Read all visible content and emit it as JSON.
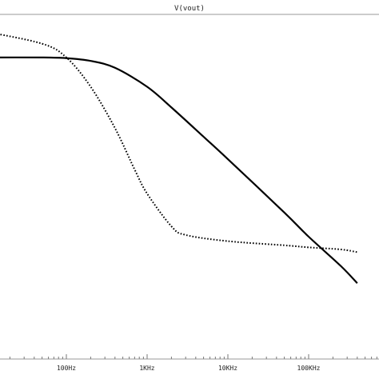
{
  "chart_data": {
    "type": "line",
    "title": "V(vout)",
    "x_scale": "log",
    "xlim_hz": [
      10,
      400000
    ],
    "x_ticks": [
      {
        "value": 100,
        "label": "100Hz"
      },
      {
        "value": 1000,
        "label": "1KHz"
      },
      {
        "value": 10000,
        "label": "10KHz"
      },
      {
        "value": 100000,
        "label": "100KHz"
      }
    ],
    "y_labels_visible": false,
    "series": [
      {
        "style": "solid",
        "color": "#000000",
        "points": [
          [
            10,
            0.875
          ],
          [
            50,
            0.875
          ],
          [
            100,
            0.873
          ],
          [
            200,
            0.865
          ],
          [
            400,
            0.845
          ],
          [
            1000,
            0.79
          ],
          [
            2000,
            0.73
          ],
          [
            5000,
            0.645
          ],
          [
            10000,
            0.58
          ],
          [
            50000,
            0.425
          ],
          [
            100000,
            0.355
          ],
          [
            250000,
            0.27
          ],
          [
            400000,
            0.22
          ]
        ]
      },
      {
        "style": "dotted",
        "color": "#000000",
        "points": [
          [
            10,
            0.95
          ],
          [
            50,
            0.915
          ],
          [
            100,
            0.875
          ],
          [
            200,
            0.79
          ],
          [
            400,
            0.67
          ],
          [
            700,
            0.55
          ],
          [
            1000,
            0.48
          ],
          [
            2000,
            0.385
          ],
          [
            3000,
            0.36
          ],
          [
            10000,
            0.342
          ],
          [
            50000,
            0.33
          ],
          [
            100000,
            0.324
          ],
          [
            250000,
            0.318
          ],
          [
            400000,
            0.31
          ]
        ]
      }
    ]
  }
}
